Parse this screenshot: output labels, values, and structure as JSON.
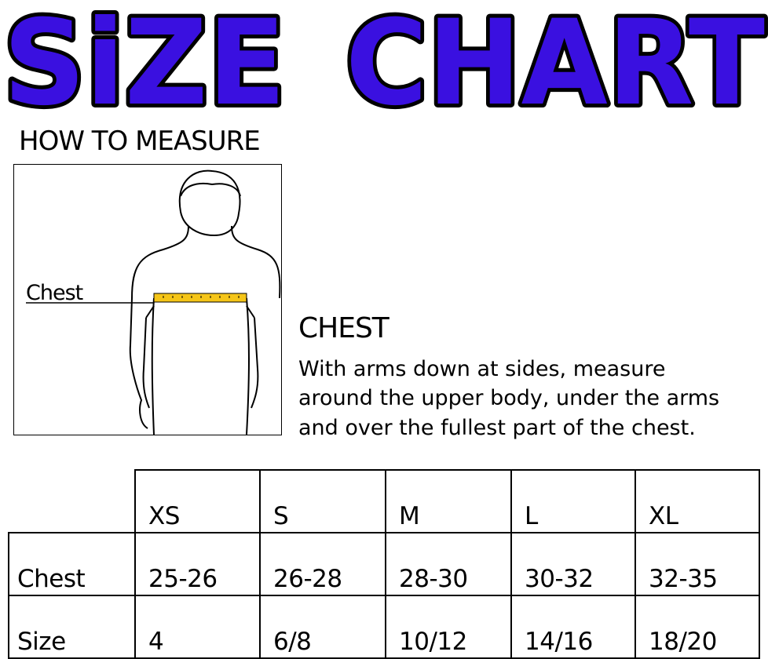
{
  "title": {
    "word1": "SiZE",
    "word2": "CHART",
    "fill_color": "#3a10e0",
    "outline_color": "#000000"
  },
  "how_to_measure": {
    "heading": "HOW TO MEASURE",
    "figure_label": "Chest",
    "tape_color": "#f5c518"
  },
  "chest": {
    "heading": "CHEST",
    "description_lines": [
      "With arms down at sides, measure",
      "around the upper body, under the arms",
      "and over the fullest part of the chest."
    ]
  },
  "table": {
    "sizes": [
      "XS",
      "S",
      "M",
      "L",
      "XL"
    ],
    "rows": [
      {
        "label": "Chest",
        "values": [
          "25-26",
          "26-28",
          "28-30",
          "30-32",
          "32-35"
        ]
      },
      {
        "label": "Size",
        "values": [
          "4",
          "6/8",
          "10/12",
          "14/16",
          "18/20"
        ]
      }
    ]
  }
}
